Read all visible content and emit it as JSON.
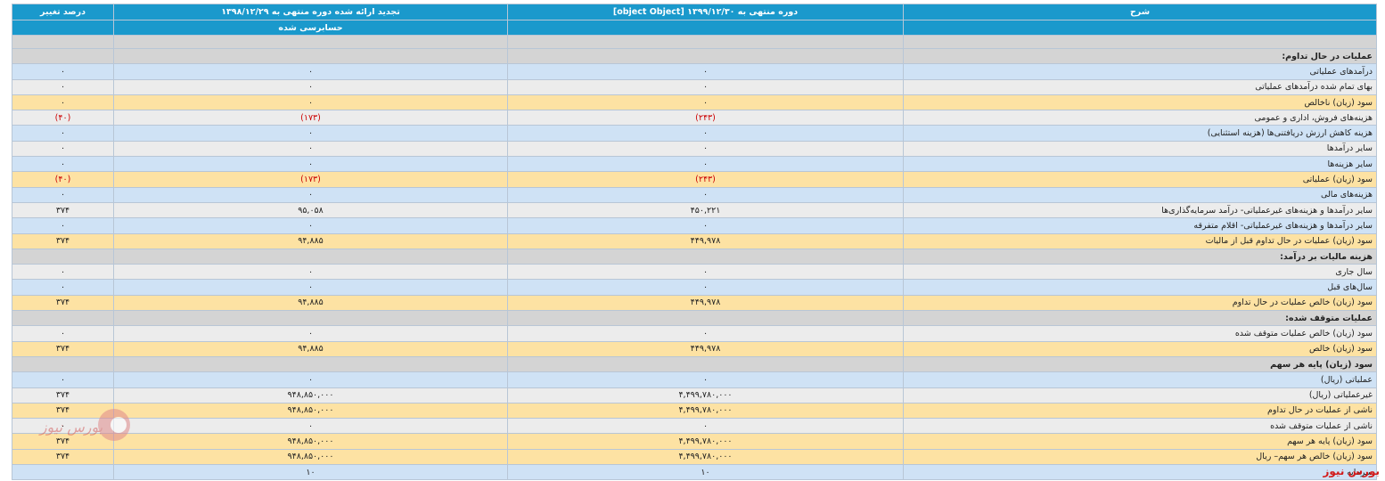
{
  "header": {
    "col_desc": "شرح",
    "col_current": "دوره منتهی به ۱۳۹۹/۱۲/۳۰ [object Object]",
    "col_prev": "تجدید ارائه شده دوره منتهی به ۱۳۹۸/۱۲/۲۹",
    "col_prev_sub": "حسابرسی شده",
    "col_change": "درصد تغییر"
  },
  "rows": [
    {
      "type": "section",
      "label": "عملیات در حال تداوم:"
    },
    {
      "type": "blue",
      "label": "درآمدهای عملیاتی",
      "cur": "۰",
      "prev": "۰",
      "chg": "۰"
    },
    {
      "type": "grey",
      "label": "بهای تمام شده درآمدهای عملیاتی",
      "cur": "۰",
      "prev": "۰",
      "chg": "۰"
    },
    {
      "type": "orange",
      "label": "سود (زیان) ناخالص",
      "cur": "۰",
      "prev": "۰",
      "chg": "۰"
    },
    {
      "type": "grey",
      "label": "هزینه‌های فروش، اداری و عمومی",
      "cur": "(۲۴۳)",
      "prev": "(۱۷۳)",
      "chg": "(۴۰)",
      "neg": true
    },
    {
      "type": "blue",
      "label": "هزینه کاهش ارزش دریافتنی‌ها (هزینه استثنایی)",
      "cur": "۰",
      "prev": "۰",
      "chg": "۰"
    },
    {
      "type": "grey",
      "label": "سایر درآمدها",
      "cur": "۰",
      "prev": "۰",
      "chg": "۰"
    },
    {
      "type": "blue",
      "label": "سایر هزینه‌ها",
      "cur": "۰",
      "prev": "۰",
      "chg": "۰"
    },
    {
      "type": "orange",
      "label": "سود (زیان) عملیاتی",
      "cur": "(۲۴۳)",
      "prev": "(۱۷۳)",
      "chg": "(۴۰)",
      "neg": true
    },
    {
      "type": "blue",
      "label": "هزینه‌های مالی",
      "cur": "۰",
      "prev": "۰",
      "chg": "۰"
    },
    {
      "type": "grey",
      "label": "سایر درآمدها و هزینه‌های غیرعملیاتی- درآمد سرمایه‌گذاری‌ها",
      "cur": "۴۵۰,۲۲۱",
      "prev": "۹۵,۰۵۸",
      "chg": "۳۷۴"
    },
    {
      "type": "blue",
      "label": "سایر درآمدها و هزینه‌های غیرعملیاتی- اقلام متفرقه",
      "cur": "۰",
      "prev": "۰",
      "chg": "۰"
    },
    {
      "type": "orange",
      "label": "سود (زیان) عملیات در حال تداوم قبل از مالیات",
      "cur": "۴۴۹,۹۷۸",
      "prev": "۹۴,۸۸۵",
      "chg": "۳۷۴"
    },
    {
      "type": "section",
      "label": "هزینه مالیات بر درآمد:"
    },
    {
      "type": "grey",
      "label": "سال جاری",
      "cur": "۰",
      "prev": "۰",
      "chg": "۰"
    },
    {
      "type": "blue",
      "label": "سال‌های قبل",
      "cur": "۰",
      "prev": "۰",
      "chg": "۰"
    },
    {
      "type": "orange",
      "label": "سود (زیان) خالص عملیات در حال تداوم",
      "cur": "۴۴۹,۹۷۸",
      "prev": "۹۴,۸۸۵",
      "chg": "۳۷۴"
    },
    {
      "type": "section",
      "label": "عملیات متوقف شده:"
    },
    {
      "type": "grey",
      "label": "سود (زیان) خالص عملیات متوقف شده",
      "cur": "۰",
      "prev": "۰",
      "chg": "۰"
    },
    {
      "type": "orange",
      "label": "سود (زیان) خالص",
      "cur": "۴۴۹,۹۷۸",
      "prev": "۹۴,۸۸۵",
      "chg": "۳۷۴"
    },
    {
      "type": "section",
      "label": "سود (زیان) پایه هر سهم"
    },
    {
      "type": "blue",
      "label": "عملیاتی (ریال)",
      "cur": "۰",
      "prev": "۰",
      "chg": "۰"
    },
    {
      "type": "grey",
      "label": "غیرعملیاتی (ریال)",
      "cur": "۴,۴۹۹,۷۸۰,۰۰۰",
      "prev": "۹۴۸,۸۵۰,۰۰۰",
      "chg": "۳۷۴"
    },
    {
      "type": "orange",
      "label": "ناشی از عملیات در حال تداوم",
      "cur": "۴,۴۹۹,۷۸۰,۰۰۰",
      "prev": "۹۴۸,۸۵۰,۰۰۰",
      "chg": "۳۷۴"
    },
    {
      "type": "grey",
      "label": "ناشی از عملیات متوقف شده",
      "cur": "۰",
      "prev": "۰",
      "chg": "۰"
    },
    {
      "type": "orange",
      "label": "سود (زیان) پایه هر سهم",
      "cur": "۴,۴۹۹,۷۸۰,۰۰۰",
      "prev": "۹۴۸,۸۵۰,۰۰۰",
      "chg": "۳۷۴"
    },
    {
      "type": "orange",
      "label": "سود (زیان) خالص هر سهم– ریال",
      "cur": "۴,۴۹۹,۷۸۰,۰۰۰",
      "prev": "۹۴۸,۸۵۰,۰۰۰",
      "chg": "۳۷۴"
    },
    {
      "type": "blue",
      "label": "سرمایه",
      "cur": "۱۰",
      "prev": "۱۰",
      "chg": ""
    }
  ],
  "watermark_text": "بورس نیوز",
  "brand_text": "بورس نیوز",
  "colors": {
    "header": "#1a99cc",
    "row_blue": "#cfe2f5",
    "row_grey": "#ececec",
    "row_orange": "#fde2a3",
    "section": "#d4d4d4",
    "negative": "#cc0000",
    "brand": "#d21a1a"
  }
}
